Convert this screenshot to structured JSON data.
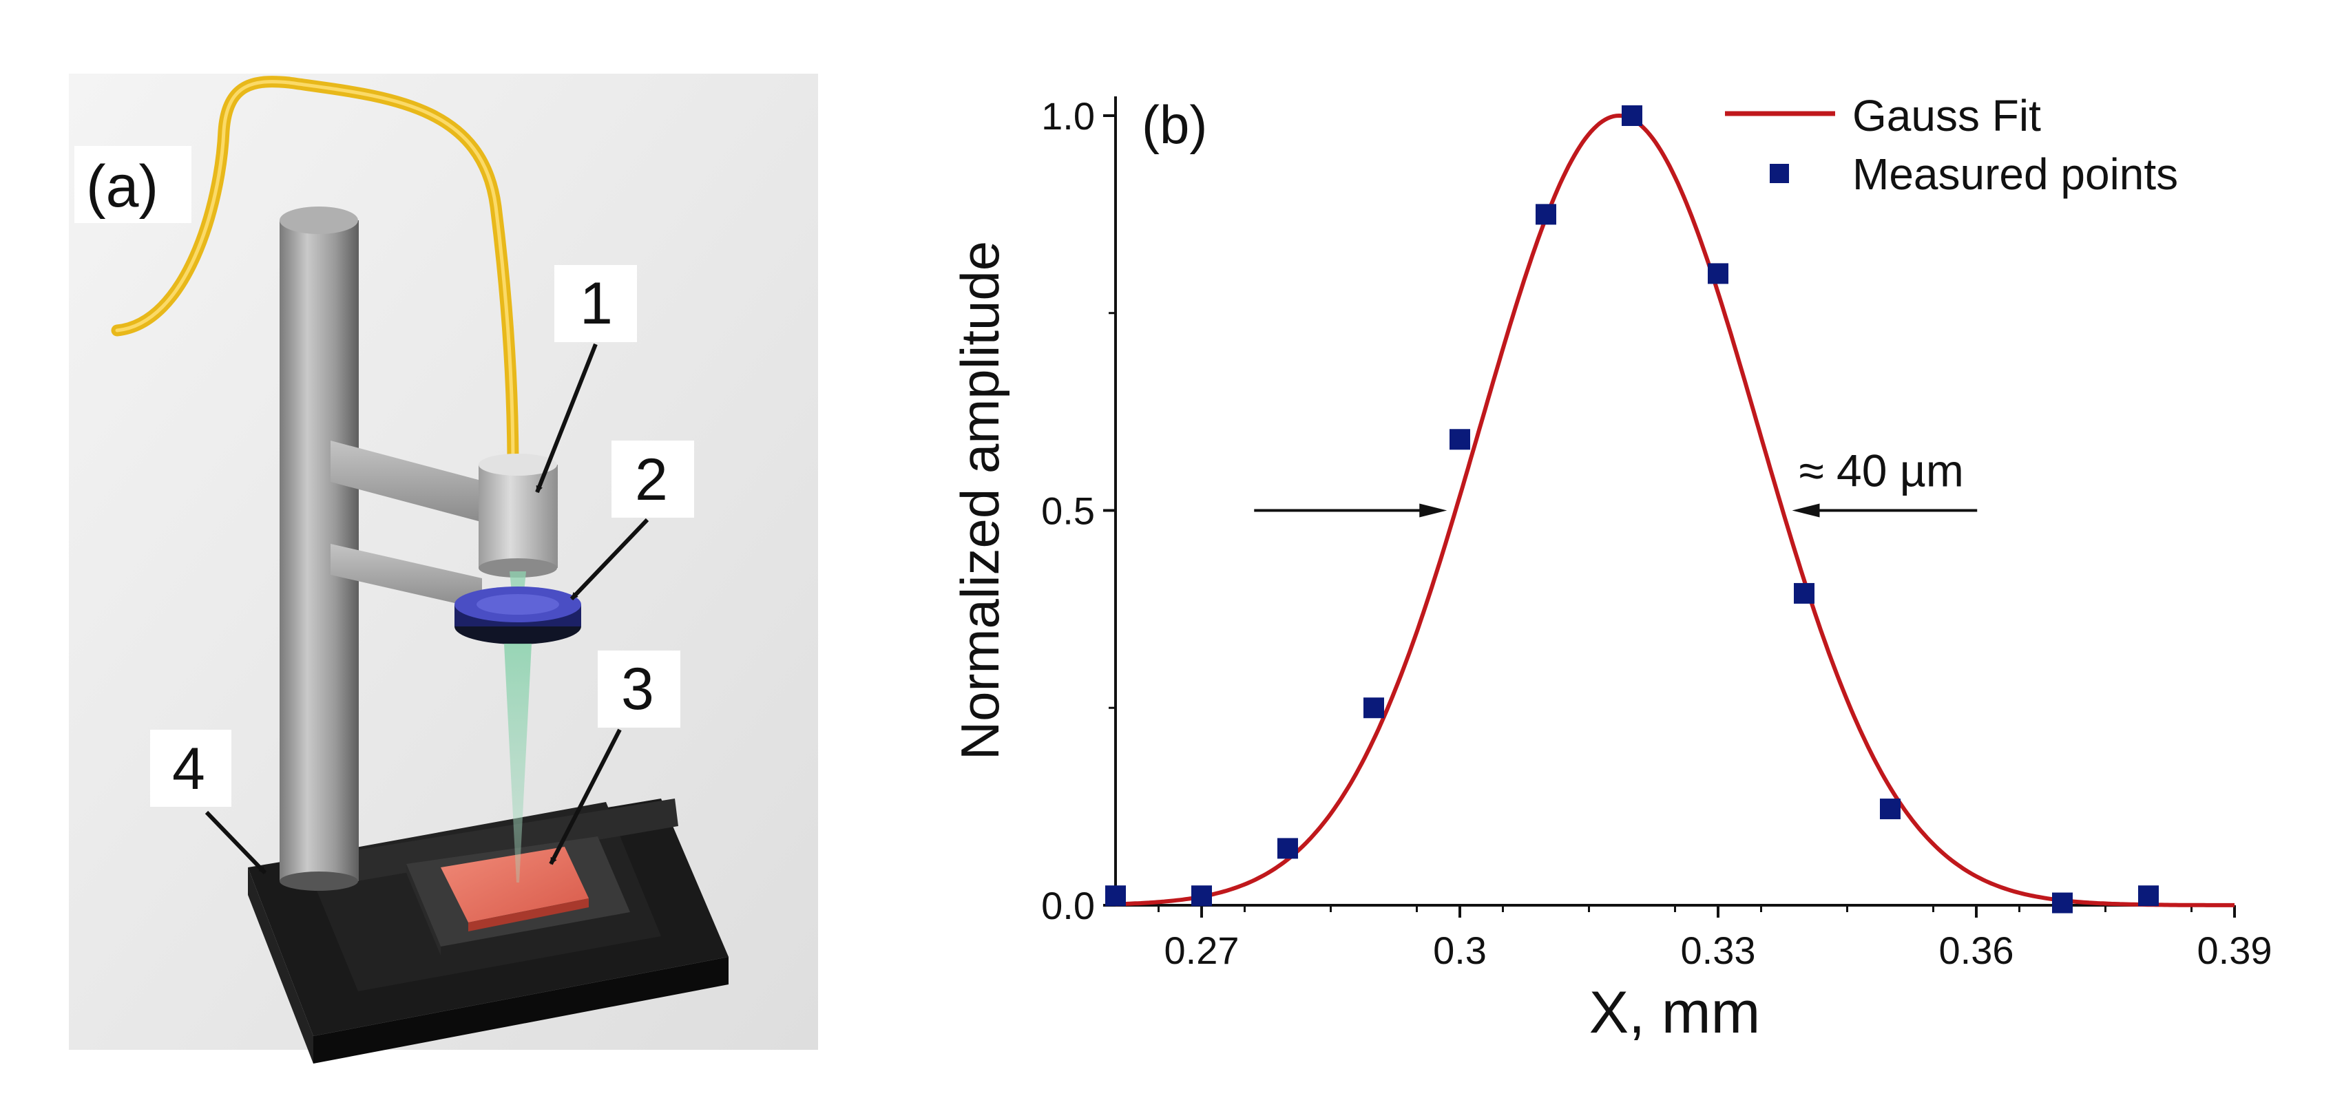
{
  "panel_a": {
    "label": "(a)",
    "callouts": [
      "1",
      "2",
      "3",
      "4"
    ]
  },
  "chart_data": {
    "type": "scatter",
    "panel_label": "(b)",
    "title": "",
    "xlabel": "X, mm",
    "ylabel": "Normalized amplitude",
    "xlim": [
      0.26,
      0.39
    ],
    "ylim": [
      0,
      1.0
    ],
    "x_ticks": [
      0.27,
      0.3,
      0.33,
      0.36,
      0.39
    ],
    "x_tick_labels": [
      "0.27",
      "0.3",
      "0.33",
      "0.36",
      "0.39"
    ],
    "y_ticks": [
      0.0,
      0.5,
      1.0
    ],
    "y_tick_labels": [
      "0.0",
      "0.5",
      "1.0"
    ],
    "series": [
      {
        "name": "Gauss Fit",
        "kind": "line",
        "color": "#c0181c",
        "model": {
          "amplitude": 1.0,
          "center": 0.3185,
          "fwhm": 0.038,
          "offset": 0
        }
      },
      {
        "name": "Measured points",
        "kind": "scatter",
        "color": "#0a1a7a",
        "x": [
          0.26,
          0.27,
          0.28,
          0.29,
          0.3,
          0.31,
          0.32,
          0.33,
          0.34,
          0.35,
          0.37,
          0.38
        ],
        "y": [
          0.012,
          0.012,
          0.072,
          0.25,
          0.59,
          0.875,
          1.0,
          0.8,
          0.395,
          0.122,
          0.003,
          0.012
        ]
      }
    ],
    "annotation": {
      "text": "≈ 40 µm",
      "y": 0.5,
      "left_arrow_x": [
        0.2761,
        0.2985
      ],
      "right_arrow_x": [
        0.3601,
        0.3386
      ]
    },
    "legend_position": "top-right"
  }
}
